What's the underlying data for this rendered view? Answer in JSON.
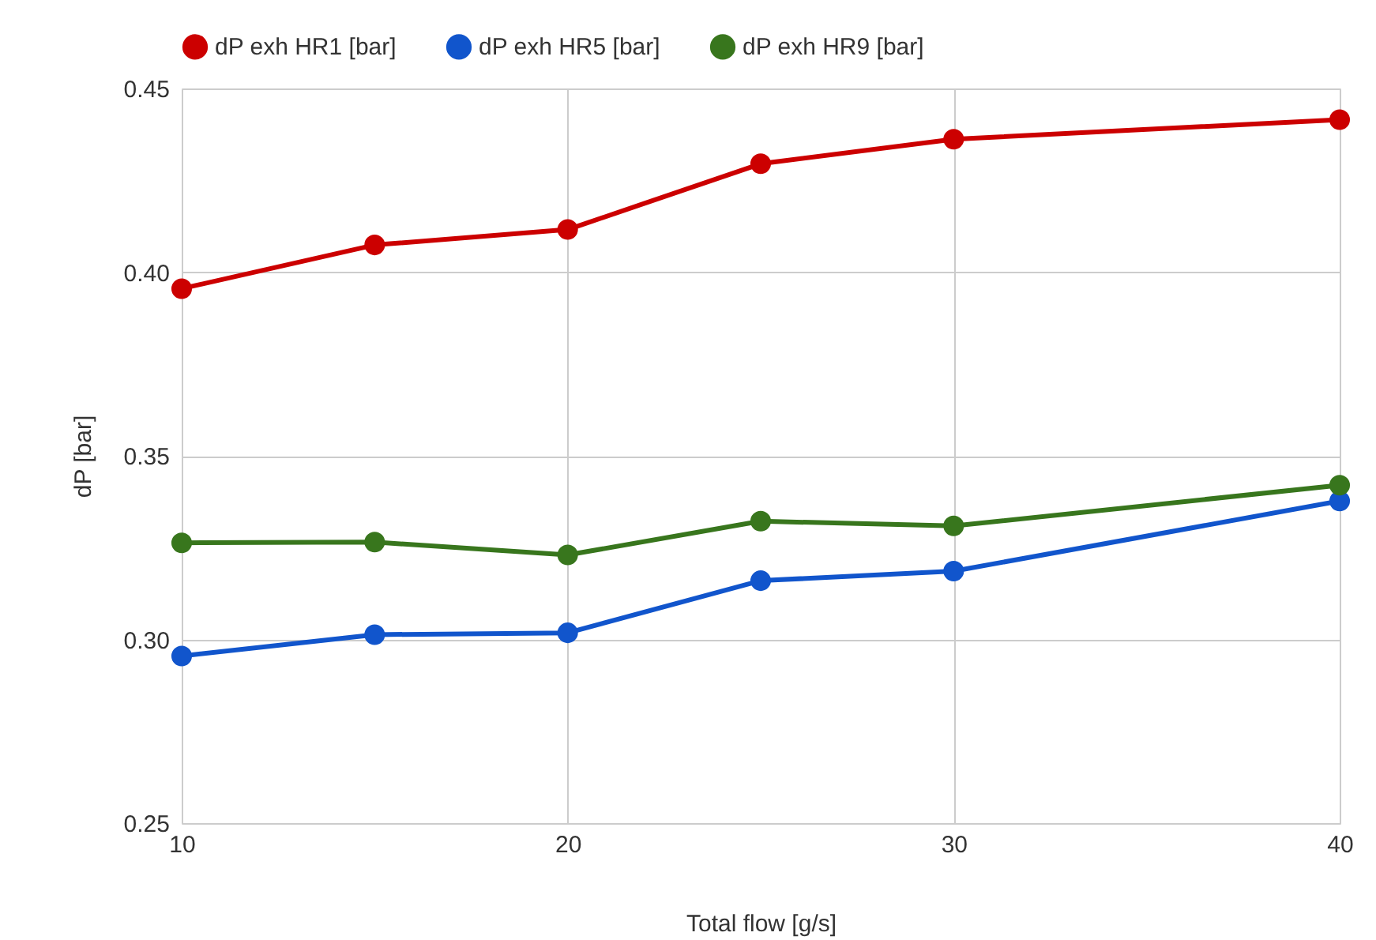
{
  "chart_data": {
    "type": "line",
    "xlabel": "Total flow [g/s]",
    "ylabel": "dP [bar]",
    "x": [
      10,
      15,
      20,
      25,
      30,
      40
    ],
    "series": [
      {
        "name": "dP exh HR1 [bar]",
        "color": "#cc0000",
        "values": [
          0.3955,
          0.4074,
          0.4116,
          0.4295,
          0.4362,
          0.4415
        ]
      },
      {
        "name": "dP exh HR5 [bar]",
        "color": "#1155cc",
        "values": [
          0.2955,
          0.3013,
          0.3018,
          0.316,
          0.3186,
          0.3377
        ]
      },
      {
        "name": "dP exh HR9 [bar]",
        "color": "#38761d",
        "values": [
          0.3263,
          0.3265,
          0.323,
          0.3322,
          0.3309,
          0.342
        ]
      }
    ],
    "xlim": [
      10,
      40
    ],
    "xticks": [
      10,
      20,
      30,
      40
    ],
    "ylim": [
      0.25,
      0.45
    ],
    "yticks": [
      {
        "value": 0.25,
        "label": "0.25"
      },
      {
        "value": 0.3,
        "label": "0.30"
      },
      {
        "value": 0.35,
        "label": "0.35"
      },
      {
        "value": 0.4,
        "label": "0.40"
      },
      {
        "value": 0.45,
        "label": "0.45"
      }
    ],
    "grid": true,
    "legend": "top",
    "marker": "circle",
    "line_style": "solid"
  }
}
